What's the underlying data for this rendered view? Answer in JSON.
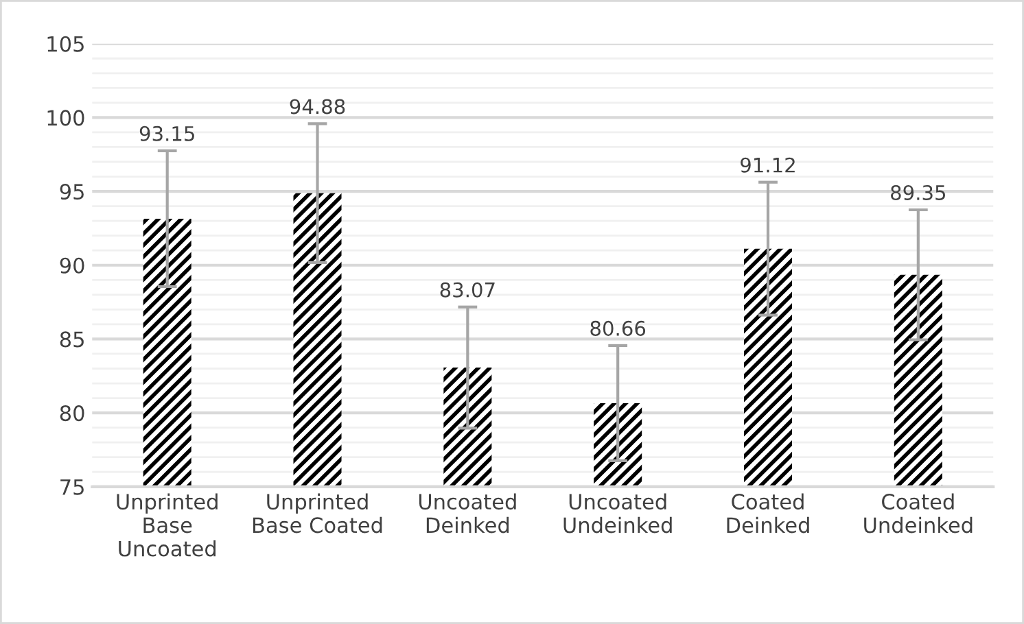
{
  "chart_data": {
    "type": "bar",
    "categories": [
      "Unprinted Base Uncoated",
      "Unprinted Base Coated",
      "Uncoated Deinked",
      "Uncoated Undeinked",
      "Coated Deinked",
      "Coated Undeinked"
    ],
    "values": [
      93.15,
      94.88,
      83.07,
      80.66,
      91.12,
      89.35
    ],
    "errors": [
      4.6,
      4.7,
      4.1,
      3.9,
      4.5,
      4.4
    ],
    "color": "#000000",
    "annotations": [
      {
        "text": "93.15",
        "x": "Unprinted Base Uncoated",
        "y": 97.75
      },
      {
        "text": "94.88",
        "x": "Unprinted Base Coated",
        "y": 99.58
      },
      {
        "text": "83.07",
        "x": "Uncoated Deinked",
        "y": 87.17
      },
      {
        "text": "80.66",
        "x": "Uncoated Undeinked",
        "y": 84.56
      },
      {
        "text": "91.12",
        "x": "Coated Deinked",
        "y": 95.62
      },
      {
        "text": "89.35",
        "x": "Coated Undeinked",
        "y": 93.75
      }
    ],
    "ylim": [
      75,
      105
    ],
    "yticks": [
      75,
      {
        "value": 76,
        "label": null
      },
      {
        "value": 77,
        "label": null
      },
      {
        "value": 78,
        "label": null
      },
      {
        "value": 79,
        "label": null
      },
      80,
      {
        "value": 81,
        "label": null
      },
      {
        "value": 82,
        "label": null
      },
      {
        "value": 83,
        "label": null
      },
      {
        "value": 84,
        "label": null
      },
      85,
      {
        "value": 86,
        "label": null
      },
      {
        "value": 87,
        "label": null
      },
      {
        "value": 88,
        "label": null
      },
      {
        "value": 89,
        "label": null
      },
      90,
      {
        "value": 91,
        "label": null
      },
      {
        "value": 92,
        "label": null
      },
      {
        "value": 93,
        "label": null
      },
      {
        "value": 94,
        "label": null
      },
      95,
      {
        "value": 96,
        "label": null
      },
      {
        "value": 97,
        "label": null
      },
      {
        "value": 98,
        "label": null
      },
      {
        "value": 99,
        "label": null
      },
      100,
      {
        "value": 101,
        "label": null
      },
      {
        "value": 102,
        "label": null
      },
      {
        "value": 103,
        "label": null
      },
      {
        "value": 104,
        "label": null
      },
      105
    ],
    "grid": "y"
  }
}
